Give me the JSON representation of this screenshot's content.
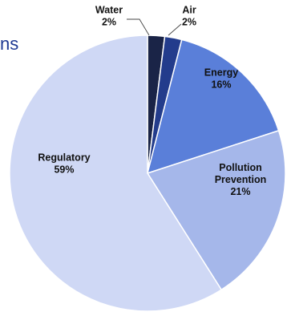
{
  "title_fragment": "ns",
  "chart_data": {
    "type": "pie",
    "title": "",
    "slices": [
      {
        "label": "Water",
        "value": 2,
        "label_text": "2%",
        "color": "#1a2447"
      },
      {
        "label": "Air",
        "value": 2,
        "label_text": "2%",
        "color": "#233c8c"
      },
      {
        "label": "Energy",
        "value": 16,
        "label_text": "16%",
        "color": "#5a7fd9"
      },
      {
        "label": "Pollution Prevention",
        "value": 21,
        "label_text": "21%",
        "color": "#a5b7ea"
      },
      {
        "label": "Regulatory",
        "value": 59,
        "label_text": "59%",
        "color": "#cfd8f5"
      }
    ]
  }
}
